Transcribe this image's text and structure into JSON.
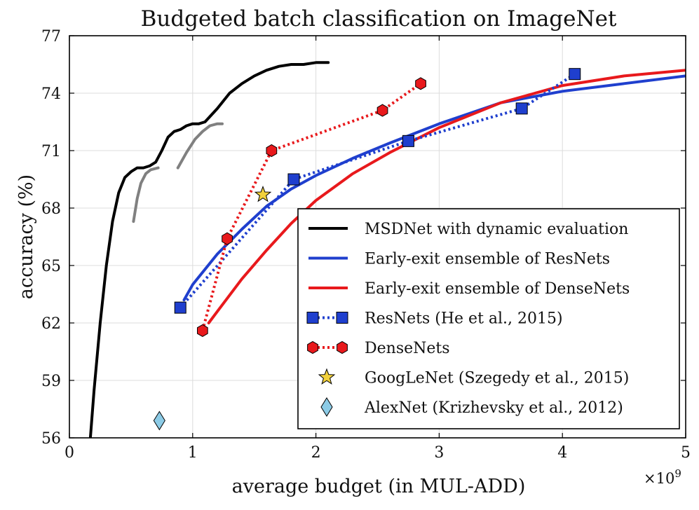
{
  "chart_data": {
    "type": "line",
    "title": "Budgeted batch classification on ImageNet",
    "xlabel": "average budget (in MUL-ADD)",
    "ylabel": "accuracy (%)",
    "x_exponent_label": "×10",
    "x_exponent_power": "9",
    "xlim": [
      0,
      5
    ],
    "ylim": [
      56,
      77
    ],
    "xticks": [
      "0",
      "1",
      "2",
      "3",
      "4",
      "5"
    ],
    "yticks": [
      "56",
      "59",
      "62",
      "65",
      "68",
      "71",
      "74",
      "77"
    ],
    "grid": true,
    "legend_position": "bottom-right",
    "series": [
      {
        "name": "MSDNet with dynamic evaluation",
        "kind": "line",
        "color": "#000000",
        "x": [
          0.17,
          0.2,
          0.25,
          0.3,
          0.35,
          0.4,
          0.45,
          0.5,
          0.55,
          0.6,
          0.65,
          0.7,
          0.75,
          0.8,
          0.85,
          0.9,
          0.95,
          1.0,
          1.05,
          1.1,
          1.2,
          1.3,
          1.4,
          1.5,
          1.6,
          1.7,
          1.8,
          1.9,
          2.0,
          2.1
        ],
        "y": [
          56.0,
          58.5,
          62.0,
          65.0,
          67.3,
          68.8,
          69.6,
          69.9,
          70.1,
          70.1,
          70.2,
          70.4,
          71.0,
          71.7,
          72.0,
          72.1,
          72.3,
          72.4,
          72.4,
          72.5,
          73.2,
          74.0,
          74.5,
          74.9,
          75.2,
          75.4,
          75.5,
          75.5,
          75.6,
          75.6
        ]
      },
      {
        "name": "",
        "kind": "line",
        "color": "#808080",
        "segments": [
          {
            "x": [
              0.52,
              0.55,
              0.58,
              0.62,
              0.66,
              0.72
            ],
            "y": [
              67.3,
              68.5,
              69.3,
              69.8,
              70.0,
              70.1
            ]
          },
          {
            "x": [
              0.88,
              0.95,
              1.02,
              1.08,
              1.14,
              1.2,
              1.24
            ],
            "y": [
              70.1,
              70.9,
              71.6,
              72.0,
              72.3,
              72.4,
              72.4
            ]
          }
        ]
      },
      {
        "name": "Early-exit ensemble of ResNets",
        "kind": "line",
        "color": "#1f3fce",
        "x": [
          0.93,
          1.0,
          1.2,
          1.4,
          1.6,
          1.8,
          2.0,
          2.3,
          2.6,
          3.0,
          3.5,
          4.0,
          4.5,
          5.0
        ],
        "y": [
          63.2,
          64.0,
          65.6,
          66.9,
          68.1,
          69.0,
          69.7,
          70.6,
          71.4,
          72.4,
          73.5,
          74.1,
          74.5,
          74.9
        ]
      },
      {
        "name": "Early-exit ensemble of DenseNets",
        "kind": "line",
        "color": "#e8191c",
        "x": [
          1.13,
          1.2,
          1.4,
          1.6,
          1.8,
          2.0,
          2.3,
          2.6,
          3.0,
          3.5,
          4.0,
          4.5,
          5.0
        ],
        "y": [
          62.0,
          62.6,
          64.3,
          65.8,
          67.2,
          68.4,
          69.8,
          70.9,
          72.2,
          73.5,
          74.4,
          74.9,
          75.2
        ]
      },
      {
        "name": "ResNets (He et al., 2015)",
        "kind": "line-markers",
        "marker": "square",
        "color": "#1f3fce",
        "x": [
          0.9,
          1.82,
          2.75,
          3.67,
          4.1
        ],
        "y": [
          62.8,
          69.5,
          71.5,
          73.2,
          75.0
        ]
      },
      {
        "name": "DenseNets",
        "kind": "line-markers",
        "marker": "hexagon",
        "color": "#e8191c",
        "x": [
          1.08,
          1.28,
          1.64,
          2.54,
          2.85
        ],
        "y": [
          61.6,
          66.4,
          71.0,
          73.1,
          74.5
        ]
      },
      {
        "name": "GoogLeNet (Szegedy et al., 2015)",
        "kind": "marker",
        "marker": "star",
        "color": "#f2d13b",
        "x": [
          1.57
        ],
        "y": [
          68.7
        ]
      },
      {
        "name": "AlexNet (Krizhevsky et al., 2012)",
        "kind": "marker",
        "marker": "diamond",
        "color": "#8ccbe6",
        "x": [
          0.73
        ],
        "y": [
          56.9
        ]
      }
    ]
  }
}
